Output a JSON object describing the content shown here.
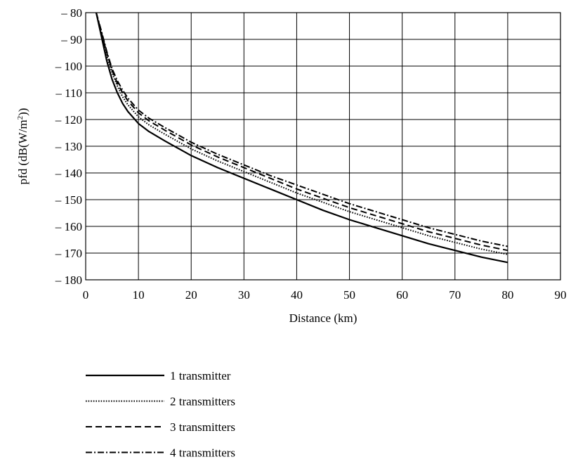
{
  "chart_data": {
    "type": "line",
    "title": "",
    "xlabel": "Distance (km)",
    "ylabel_main": "pfd (dB(W/m",
    "ylabel_sup": "2",
    "ylabel_tail": "))",
    "xlim": [
      0,
      90
    ],
    "ylim": [
      -180,
      -80
    ],
    "x_ticks": [
      0,
      10,
      20,
      30,
      40,
      50,
      60,
      70,
      80,
      90
    ],
    "x_tick_labels": [
      "0",
      "10",
      "20",
      "30",
      "40",
      "50",
      "60",
      "70",
      "80",
      "90"
    ],
    "y_ticks": [
      -80,
      -90,
      -100,
      -110,
      -120,
      -130,
      -140,
      -150,
      -160,
      -170,
      -180
    ],
    "y_tick_labels": [
      "– 80",
      "– 90",
      "– 100",
      "– 110",
      "– 120",
      "– 130",
      "– 140",
      "– 150",
      "– 160",
      "– 170",
      "– 180"
    ],
    "grid": true,
    "legend_position": "bottom",
    "series": [
      {
        "name": "1 transmitter",
        "style": "solid",
        "x": [
          2,
          3,
          4,
          5,
          6,
          7,
          8,
          10,
          12,
          15,
          20,
          25,
          30,
          35,
          40,
          45,
          50,
          55,
          60,
          65,
          70,
          75,
          80
        ],
        "y": [
          -80,
          -89,
          -98,
          -105,
          -110,
          -114,
          -117,
          -121.5,
          -124.5,
          -128,
          -133.5,
          -138,
          -142,
          -146,
          -150,
          -154,
          -157.5,
          -160.5,
          -163.5,
          -166.5,
          -169,
          -171.5,
          -173.5
        ]
      },
      {
        "name": "2 transmitters",
        "style": "dotted",
        "x": [
          2,
          3,
          4,
          5,
          6,
          7,
          8,
          10,
          12,
          15,
          20,
          25,
          30,
          35,
          40,
          45,
          50,
          55,
          60,
          65,
          70,
          75,
          80
        ],
        "y": [
          -80,
          -88,
          -96,
          -102.5,
          -107.5,
          -111.5,
          -114.5,
          -119,
          -122,
          -125.5,
          -131,
          -135.5,
          -139.5,
          -143.5,
          -147.5,
          -151,
          -154.5,
          -157.5,
          -160.5,
          -163.5,
          -166,
          -168.5,
          -170.5
        ]
      },
      {
        "name": "3 transmitters",
        "style": "dashed",
        "x": [
          2,
          3,
          4,
          5,
          6,
          7,
          8,
          10,
          12,
          15,
          20,
          25,
          30,
          35,
          40,
          45,
          50,
          55,
          60,
          65,
          70,
          75,
          80
        ],
        "y": [
          -80,
          -87.5,
          -95,
          -101.5,
          -106.5,
          -110,
          -113,
          -117.5,
          -120.5,
          -124,
          -129.5,
          -134,
          -138,
          -142,
          -146,
          -149.5,
          -153,
          -156,
          -159,
          -162,
          -164.5,
          -167,
          -169
        ]
      },
      {
        "name": "4 transmitters",
        "style": "dashdot",
        "x": [
          2,
          3,
          4,
          5,
          6,
          7,
          8,
          10,
          12,
          15,
          20,
          25,
          30,
          35,
          40,
          45,
          50,
          55,
          60,
          65,
          70,
          75,
          80
        ],
        "y": [
          -80,
          -87,
          -94.5,
          -101,
          -105.5,
          -109,
          -112,
          -116.5,
          -119.5,
          -123,
          -128.5,
          -133,
          -137,
          -141,
          -144.5,
          -148,
          -151.5,
          -154.5,
          -157.5,
          -160.5,
          -163,
          -165.5,
          -167.5
        ]
      }
    ]
  }
}
